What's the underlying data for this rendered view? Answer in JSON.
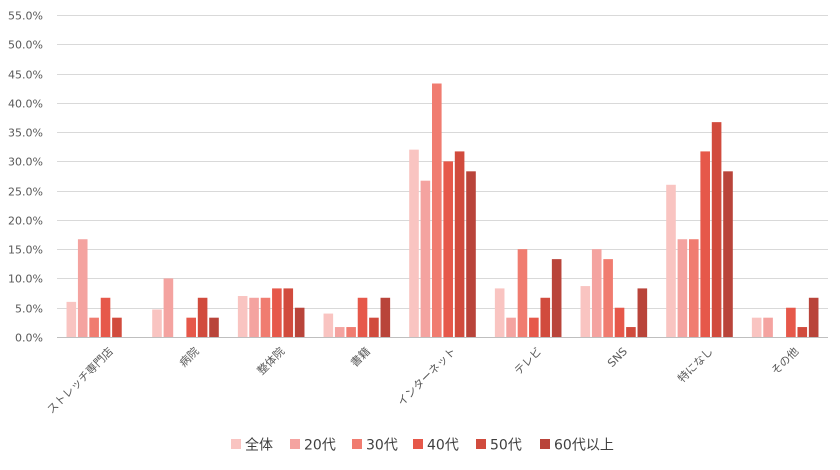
{
  "chart_data": {
    "type": "bar",
    "title": "",
    "xlabel": "",
    "ylabel": "",
    "ylim": [
      0,
      55
    ],
    "yticks": [
      0,
      5,
      10,
      15,
      20,
      25,
      30,
      35,
      40,
      45,
      50,
      55
    ],
    "ytick_labels": [
      "0.0%",
      "5.0%",
      "10.0%",
      "15.0%",
      "20.0%",
      "25.0%",
      "30.0%",
      "35.0%",
      "40.0%",
      "45.0%",
      "50.0%",
      "55.0%"
    ],
    "categories": [
      "ストレッチ専門店",
      "病院",
      "整体院",
      "書籍",
      "インターネット",
      "テレビ",
      "SNS",
      "特になし",
      "その他"
    ],
    "legend_position": "bottom",
    "series": [
      {
        "name": "全体",
        "color": "#f9c4c1",
        "values": [
          6.0,
          4.7,
          7.0,
          4.0,
          32.0,
          8.3,
          8.7,
          26.0,
          3.3
        ]
      },
      {
        "name": "20代",
        "color": "#f4a3a0",
        "values": [
          16.7,
          10.0,
          6.7,
          1.7,
          26.7,
          3.3,
          15.0,
          16.7,
          3.3
        ]
      },
      {
        "name": "30代",
        "color": "#f07c70",
        "values": [
          3.3,
          0.0,
          6.7,
          1.7,
          43.3,
          15.0,
          13.3,
          16.7,
          0.0
        ]
      },
      {
        "name": "40代",
        "color": "#e6584a",
        "values": [
          6.7,
          3.3,
          8.3,
          6.7,
          30.0,
          3.3,
          5.0,
          31.7,
          5.0
        ]
      },
      {
        "name": "50代",
        "color": "#d14b3d",
        "values": [
          3.3,
          6.7,
          8.3,
          3.3,
          31.7,
          6.7,
          1.7,
          36.7,
          1.7
        ]
      },
      {
        "name": "60代以上",
        "color": "#b9443a",
        "values": [
          0.0,
          3.3,
          5.0,
          6.7,
          28.3,
          13.3,
          8.3,
          28.3,
          6.7
        ]
      }
    ]
  }
}
